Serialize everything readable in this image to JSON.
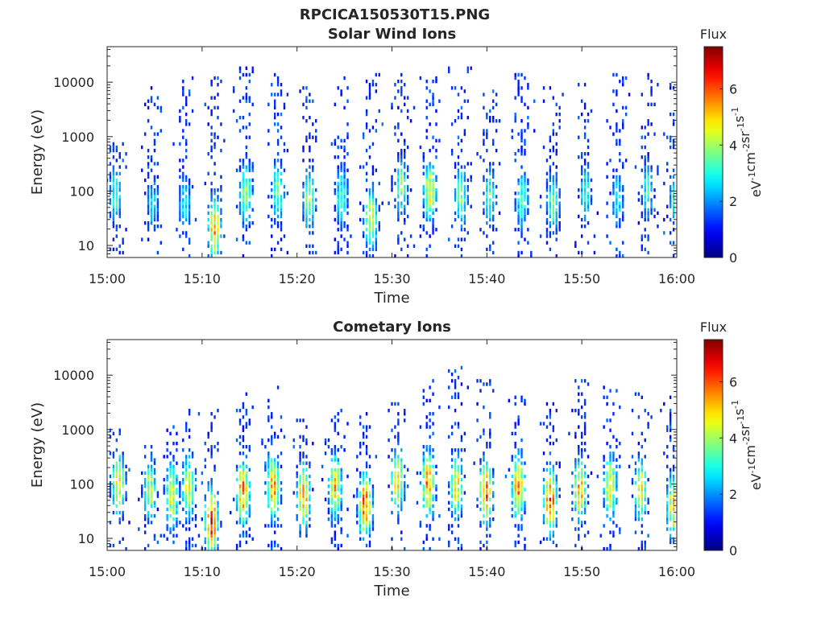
{
  "figure_title": "RPCICA150530T15.PNG",
  "chart_data": [
    {
      "type": "heatmap",
      "title": "Solar Wind Ions",
      "xlabel": "Time",
      "ylabel": "Energy (eV)",
      "x_ticks": [
        "15:00",
        "15:10",
        "15:20",
        "15:30",
        "15:40",
        "15:50",
        "16:00"
      ],
      "x_range": [
        "15:00",
        "16:00"
      ],
      "y_scale": "log",
      "y_ticks": [
        10,
        100,
        1000,
        10000
      ],
      "y_tick_labels": [
        "10",
        "100",
        "1000",
        "10000"
      ],
      "y_range": [
        6,
        45000
      ],
      "colorbar": {
        "title": "Flux",
        "label": "eV-1cm-2sr-1s-1",
        "label_parts": [
          {
            "text": "eV",
            "sup": "-1"
          },
          {
            "text": "cm",
            "sup": "-2"
          },
          {
            "text": "sr",
            "sup": "-1"
          },
          {
            "text": "s",
            "sup": "-1"
          }
        ],
        "range": [
          0,
          7.5
        ],
        "ticks": [
          0,
          2,
          4,
          6
        ],
        "colormap": "jet"
      },
      "scan_times_min": [
        0.9,
        4.8,
        8.2,
        11.3,
        14.6,
        18.0,
        21.3,
        24.7,
        27.8,
        31.0,
        34.0,
        37.3,
        40.3,
        43.7,
        47.0,
        50.4,
        53.8,
        56.9,
        59.8
      ],
      "spectra": [
        {
          "t": 0.9,
          "peak_energy_eV": 90,
          "peak_flux": 3.2,
          "max_energy_eV": 800
        },
        {
          "t": 4.8,
          "peak_energy_eV": 60,
          "peak_flux": 2.6,
          "max_energy_eV": 8000
        },
        {
          "t": 8.2,
          "peak_energy_eV": 60,
          "peak_flux": 2.8,
          "max_energy_eV": 12000
        },
        {
          "t": 11.3,
          "peak_energy_eV": 20,
          "peak_flux": 5.2,
          "max_energy_eV": 12000
        },
        {
          "t": 14.6,
          "peak_energy_eV": 90,
          "peak_flux": 4.0,
          "max_energy_eV": 20000
        },
        {
          "t": 18.0,
          "peak_energy_eV": 100,
          "peak_flux": 3.6,
          "max_energy_eV": 18000
        },
        {
          "t": 21.3,
          "peak_energy_eV": 70,
          "peak_flux": 3.8,
          "max_energy_eV": 10000
        },
        {
          "t": 24.7,
          "peak_energy_eV": 80,
          "peak_flux": 3.2,
          "max_energy_eV": 12000
        },
        {
          "t": 27.8,
          "peak_energy_eV": 30,
          "peak_flux": 4.6,
          "max_energy_eV": 14000
        },
        {
          "t": 31.0,
          "peak_energy_eV": 120,
          "peak_flux": 3.6,
          "max_energy_eV": 15000
        },
        {
          "t": 34.0,
          "peak_energy_eV": 100,
          "peak_flux": 4.6,
          "max_energy_eV": 12000
        },
        {
          "t": 37.3,
          "peak_energy_eV": 80,
          "peak_flux": 3.6,
          "max_energy_eV": 20000
        },
        {
          "t": 40.3,
          "peak_energy_eV": 80,
          "peak_flux": 3.4,
          "max_energy_eV": 15000
        },
        {
          "t": 43.7,
          "peak_energy_eV": 70,
          "peak_flux": 3.2,
          "max_energy_eV": 15000
        },
        {
          "t": 47.0,
          "peak_energy_eV": 60,
          "peak_flux": 3.6,
          "max_energy_eV": 12000
        },
        {
          "t": 50.4,
          "peak_energy_eV": 90,
          "peak_flux": 3.0,
          "max_energy_eV": 10000
        },
        {
          "t": 53.8,
          "peak_energy_eV": 70,
          "peak_flux": 2.8,
          "max_energy_eV": 15000
        },
        {
          "t": 56.9,
          "peak_energy_eV": 100,
          "peak_flux": 3.0,
          "max_energy_eV": 15000
        },
        {
          "t": 59.8,
          "peak_energy_eV": 70,
          "peak_flux": 3.0,
          "max_energy_eV": 10000
        }
      ]
    },
    {
      "type": "heatmap",
      "title": "Cometary Ions",
      "xlabel": "Time",
      "ylabel": "Energy (eV)",
      "x_ticks": [
        "15:00",
        "15:10",
        "15:20",
        "15:30",
        "15:40",
        "15:50",
        "16:00"
      ],
      "x_range": [
        "15:00",
        "16:00"
      ],
      "y_scale": "log",
      "y_ticks": [
        10,
        100,
        1000,
        10000
      ],
      "y_tick_labels": [
        "10",
        "100",
        "1000",
        "10000"
      ],
      "y_range": [
        6,
        45000
      ],
      "colorbar": {
        "title": "Flux",
        "label": "eV-1cm-2sr-1s-1",
        "label_parts": [
          {
            "text": "eV",
            "sup": "-1"
          },
          {
            "text": "cm",
            "sup": "-2"
          },
          {
            "text": "sr",
            "sup": "-1"
          },
          {
            "text": "s",
            "sup": "-1"
          }
        ],
        "range": [
          0,
          7.5
        ],
        "ticks": [
          0,
          2,
          4,
          6
        ],
        "colormap": "jet"
      },
      "scan_times_min": [
        1.2,
        4.5,
        6.8,
        8.6,
        11.0,
        14.3,
        17.5,
        20.7,
        24.0,
        27.2,
        30.6,
        33.8,
        36.8,
        39.9,
        43.3,
        46.7,
        49.8,
        53.0,
        56.2,
        59.6
      ],
      "spectra": [
        {
          "t": 1.2,
          "peak_energy_eV": 100,
          "peak_flux": 4.8,
          "max_energy_eV": 1000
        },
        {
          "t": 4.5,
          "peak_energy_eV": 80,
          "peak_flux": 4.2,
          "max_energy_eV": 500
        },
        {
          "t": 6.8,
          "peak_energy_eV": 60,
          "peak_flux": 4.6,
          "max_energy_eV": 1500
        },
        {
          "t": 8.6,
          "peak_energy_eV": 90,
          "peak_flux": 4.4,
          "max_energy_eV": 2500
        },
        {
          "t": 11.0,
          "peak_energy_eV": 20,
          "peak_flux": 6.4,
          "max_energy_eV": 2500
        },
        {
          "t": 14.3,
          "peak_energy_eV": 70,
          "peak_flux": 5.6,
          "max_energy_eV": 5000
        },
        {
          "t": 17.5,
          "peak_energy_eV": 90,
          "peak_flux": 5.4,
          "max_energy_eV": 6000
        },
        {
          "t": 20.7,
          "peak_energy_eV": 60,
          "peak_flux": 5.4,
          "max_energy_eV": 1500
        },
        {
          "t": 24.0,
          "peak_energy_eV": 90,
          "peak_flux": 5.0,
          "max_energy_eV": 3000
        },
        {
          "t": 27.2,
          "peak_energy_eV": 40,
          "peak_flux": 6.0,
          "max_energy_eV": 2000
        },
        {
          "t": 30.6,
          "peak_energy_eV": 120,
          "peak_flux": 5.0,
          "max_energy_eV": 3000
        },
        {
          "t": 33.8,
          "peak_energy_eV": 100,
          "peak_flux": 5.6,
          "max_energy_eV": 8000
        },
        {
          "t": 36.8,
          "peak_energy_eV": 90,
          "peak_flux": 4.8,
          "max_energy_eV": 20000
        },
        {
          "t": 39.9,
          "peak_energy_eV": 70,
          "peak_flux": 5.8,
          "max_energy_eV": 9000
        },
        {
          "t": 43.3,
          "peak_energy_eV": 90,
          "peak_flux": 5.4,
          "max_energy_eV": 4000
        },
        {
          "t": 46.7,
          "peak_energy_eV": 50,
          "peak_flux": 6.0,
          "max_energy_eV": 3000
        },
        {
          "t": 49.8,
          "peak_energy_eV": 80,
          "peak_flux": 5.2,
          "max_energy_eV": 8000
        },
        {
          "t": 53.0,
          "peak_energy_eV": 90,
          "peak_flux": 4.8,
          "max_energy_eV": 6000
        },
        {
          "t": 56.2,
          "peak_energy_eV": 80,
          "peak_flux": 4.6,
          "max_energy_eV": 5000
        },
        {
          "t": 59.6,
          "peak_energy_eV": 40,
          "peak_flux": 4.8,
          "max_energy_eV": 5000
        }
      ]
    }
  ]
}
